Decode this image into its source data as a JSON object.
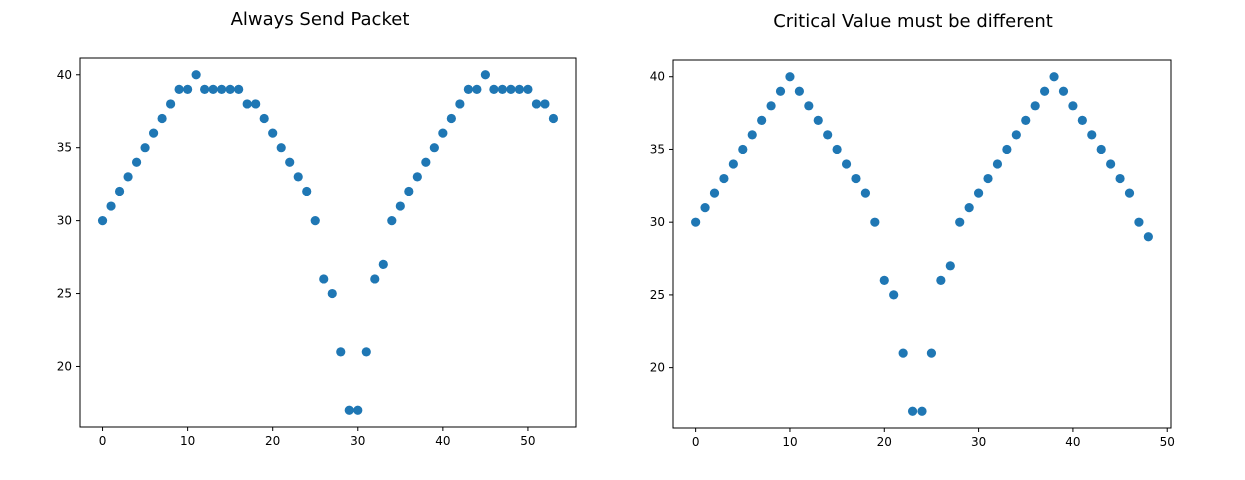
{
  "chart_data": [
    {
      "type": "scatter",
      "title": "Always Send Packet",
      "xlabel": "",
      "ylabel": "",
      "xlim": [
        -2.65,
        55.65
      ],
      "ylim": [
        15.85,
        41.15
      ],
      "xticks": [
        0,
        10,
        20,
        30,
        40,
        50
      ],
      "yticks": [
        20,
        25,
        30,
        35,
        40
      ],
      "grid": false,
      "color": "#1f77b4",
      "x": [
        0,
        1,
        2,
        3,
        4,
        5,
        6,
        7,
        8,
        9,
        10,
        11,
        12,
        13,
        14,
        15,
        16,
        17,
        18,
        19,
        20,
        21,
        22,
        23,
        24,
        25,
        26,
        27,
        28,
        29,
        30,
        31,
        32,
        33,
        34,
        35,
        36,
        37,
        38,
        39,
        40,
        41,
        42,
        43,
        44,
        45,
        46,
        47,
        48,
        49,
        50,
        51,
        52,
        53
      ],
      "y": [
        30,
        31,
        32,
        33,
        34,
        35,
        36,
        37,
        38,
        39,
        39,
        40,
        39,
        39,
        39,
        39,
        39,
        38,
        38,
        37,
        36,
        35,
        34,
        33,
        32,
        30,
        26,
        25,
        21,
        17,
        17,
        21,
        26,
        27,
        30,
        31,
        32,
        33,
        34,
        35,
        36,
        37,
        38,
        39,
        39,
        40,
        39,
        39,
        39,
        39,
        39,
        38,
        38,
        37
      ]
    },
    {
      "type": "scatter",
      "title": "Critical Value must be different",
      "xlabel": "",
      "ylabel": "",
      "xlim": [
        -2.4,
        50.4
      ],
      "ylim": [
        15.85,
        41.15
      ],
      "xticks": [
        0,
        10,
        20,
        30,
        40,
        50
      ],
      "yticks": [
        20,
        25,
        30,
        35,
        40
      ],
      "grid": false,
      "color": "#1f77b4",
      "x": [
        0,
        1,
        2,
        3,
        4,
        5,
        6,
        7,
        8,
        9,
        10,
        11,
        12,
        13,
        14,
        15,
        16,
        17,
        18,
        19,
        20,
        21,
        22,
        23,
        24,
        25,
        26,
        27,
        28,
        29,
        30,
        31,
        32,
        33,
        34,
        35,
        36,
        37,
        38,
        39,
        40,
        41,
        42,
        43,
        44,
        45,
        46,
        47,
        48
      ],
      "y": [
        30,
        31,
        32,
        33,
        34,
        35,
        36,
        37,
        38,
        39,
        40,
        39,
        38,
        37,
        36,
        35,
        34,
        33,
        32,
        30,
        26,
        25,
        21,
        17,
        17,
        21,
        26,
        27,
        30,
        31,
        32,
        33,
        34,
        35,
        36,
        37,
        38,
        39,
        40,
        39,
        38,
        37,
        36,
        35,
        34,
        33,
        32,
        30,
        29
      ]
    }
  ]
}
